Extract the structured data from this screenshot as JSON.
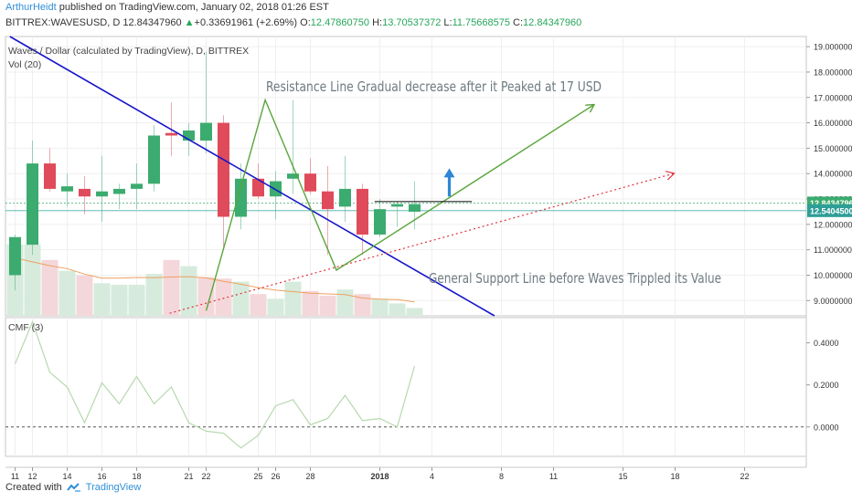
{
  "header": {
    "author": "ArthurHeidt",
    "published_text": "published on TradingView.com, January 02, 2018 01:26 EST",
    "symbol": "BITTREX:WAVESUSD, D",
    "last_price": "12.84347960",
    "change_arrow": "▲",
    "change": "+0.33691961 (+2.69%)",
    "o_label": "O:",
    "o_value": "12.47860750",
    "h_label": "H:",
    "h_value": "13.70537372",
    "l_label": "L:",
    "l_value": "11.75668575",
    "c_label": "C:",
    "c_value": "12.84347960"
  },
  "chart_title": "Waves / Dollar (calculated by TradingView), D, BITTREX",
  "volume_label": "Vol (20)",
  "cmf_label": "CMF (3)",
  "annotations": {
    "resistance": "Resistance Line Gradual decrease after it Peaked at 17 USD",
    "support": "General Support Line before Waves Trippled its Value"
  },
  "price_badges": {
    "last": "12.84347960",
    "second": "12.54045008"
  },
  "footer": {
    "created": "Created with",
    "brand": "TradingView"
  },
  "colors": {
    "up": "#3cab6f",
    "down": "#df4b5a",
    "resistance_line": "#1616c8",
    "trend_line": "#5aa53c",
    "support_line": "#e0333b",
    "arrow": "#2f86d6",
    "volume_ma": "#f0a060",
    "cmf": "#b6d8ad"
  },
  "chart_data": {
    "type": "candlestick",
    "x_ticks": [
      "11",
      "12",
      "14",
      "16",
      "18",
      "21",
      "22",
      "25",
      "26",
      "28",
      "2018",
      "4",
      "8",
      "11",
      "15",
      "18",
      "22"
    ],
    "y_ticks": [
      "19.00000000",
      "18.00000000",
      "17.00000000",
      "16.00000000",
      "15.00000000",
      "14.00000000",
      "13.00000000",
      "12.00000000",
      "11.00000000",
      "10.00000000",
      "9.00000000"
    ],
    "cmf_ticks": [
      "0.4000",
      "0.2000",
      "0.0000"
    ],
    "candles": [
      {
        "o": 10.0,
        "h": 11.6,
        "l": 9.4,
        "c": 11.5
      },
      {
        "o": 11.2,
        "h": 15.3,
        "l": 10.8,
        "c": 14.4
      },
      {
        "o": 14.4,
        "h": 15.0,
        "l": 13.3,
        "c": 13.4
      },
      {
        "o": 13.3,
        "h": 14.0,
        "l": 12.7,
        "c": 13.5
      },
      {
        "o": 13.4,
        "h": 13.9,
        "l": 12.4,
        "c": 13.1
      },
      {
        "o": 13.1,
        "h": 14.7,
        "l": 12.1,
        "c": 13.3
      },
      {
        "o": 13.2,
        "h": 13.6,
        "l": 12.6,
        "c": 13.4
      },
      {
        "o": 13.4,
        "h": 14.4,
        "l": 12.6,
        "c": 13.6
      },
      {
        "o": 13.6,
        "h": 15.9,
        "l": 13.3,
        "c": 15.5
      },
      {
        "o": 15.6,
        "h": 16.8,
        "l": 14.7,
        "c": 15.5
      },
      {
        "o": 15.3,
        "h": 16.0,
        "l": 14.7,
        "c": 15.7
      },
      {
        "o": 15.3,
        "h": 18.8,
        "l": 14.8,
        "c": 16.0
      },
      {
        "o": 16.0,
        "h": 16.3,
        "l": 11.0,
        "c": 12.3
      },
      {
        "o": 12.3,
        "h": 14.4,
        "l": 11.8,
        "c": 13.8
      },
      {
        "o": 13.8,
        "h": 14.4,
        "l": 13.0,
        "c": 13.1
      },
      {
        "o": 13.1,
        "h": 14.1,
        "l": 12.2,
        "c": 13.7
      },
      {
        "o": 13.8,
        "h": 16.9,
        "l": 13.2,
        "c": 14.0
      },
      {
        "o": 14.0,
        "h": 14.6,
        "l": 13.2,
        "c": 13.3
      },
      {
        "o": 13.3,
        "h": 14.3,
        "l": 10.8,
        "c": 12.6
      },
      {
        "o": 12.7,
        "h": 14.7,
        "l": 12.1,
        "c": 13.4
      },
      {
        "o": 13.4,
        "h": 13.6,
        "l": 10.8,
        "c": 11.6
      },
      {
        "o": 11.6,
        "h": 13.0,
        "l": 11.5,
        "c": 12.6
      },
      {
        "o": 12.7,
        "h": 12.9,
        "l": 11.9,
        "c": 12.8
      },
      {
        "o": 12.5,
        "h": 13.7,
        "l": 11.8,
        "c": 12.8
      }
    ],
    "volumes": [
      {
        "v": 0.46,
        "up": true
      },
      {
        "v": 0.46,
        "up": true
      },
      {
        "v": 0.36,
        "up": false
      },
      {
        "v": 0.29,
        "up": true
      },
      {
        "v": 0.26,
        "up": false
      },
      {
        "v": 0.21,
        "up": true
      },
      {
        "v": 0.2,
        "up": true
      },
      {
        "v": 0.2,
        "up": true
      },
      {
        "v": 0.27,
        "up": true
      },
      {
        "v": 0.36,
        "up": false
      },
      {
        "v": 0.32,
        "up": true
      },
      {
        "v": 0.25,
        "up": false
      },
      {
        "v": 0.24,
        "up": false
      },
      {
        "v": 0.22,
        "up": true
      },
      {
        "v": 0.14,
        "up": false
      },
      {
        "v": 0.11,
        "up": true
      },
      {
        "v": 0.22,
        "up": true
      },
      {
        "v": 0.16,
        "up": false
      },
      {
        "v": 0.13,
        "up": false
      },
      {
        "v": 0.17,
        "up": true
      },
      {
        "v": 0.14,
        "up": false
      },
      {
        "v": 0.11,
        "up": true
      },
      {
        "v": 0.08,
        "up": true
      },
      {
        "v": 0.05,
        "up": true
      }
    ],
    "cmf": [
      0.3,
      0.5,
      0.26,
      0.19,
      0.02,
      0.21,
      0.11,
      0.24,
      0.11,
      0.19,
      0.02,
      -0.02,
      -0.03,
      -0.1,
      -0.04,
      0.1,
      0.13,
      0.01,
      0.04,
      0.15,
      0.03,
      0.04,
      0.0,
      0.29
    ],
    "y_range": [
      8.4,
      19.4
    ],
    "cmf_range": [
      -0.14,
      0.52
    ],
    "trendlines": [
      {
        "name": "resistance",
        "from": [
          -0.3,
          19.4
        ],
        "to": [
          27.6,
          8.4
        ],
        "style": "solid"
      },
      {
        "name": "support",
        "from": [
          8.9,
          8.5
        ],
        "to": [
          37.9,
          14.0
        ],
        "style": "dotted",
        "arrow": true
      },
      {
        "name": "pattern",
        "points": [
          [
            11.0,
            8.6
          ],
          [
            14.4,
            16.9
          ],
          [
            18.5,
            10.2
          ],
          [
            33.3,
            16.7
          ]
        ],
        "style": "solid",
        "arrow": true
      }
    ],
    "horizontal_lines": [
      {
        "from": 20.7,
        "to": 26.3,
        "y": 12.9
      }
    ],
    "up_arrow": {
      "x": 25.0,
      "y_from": 13.1,
      "y_to": 14.1
    }
  }
}
